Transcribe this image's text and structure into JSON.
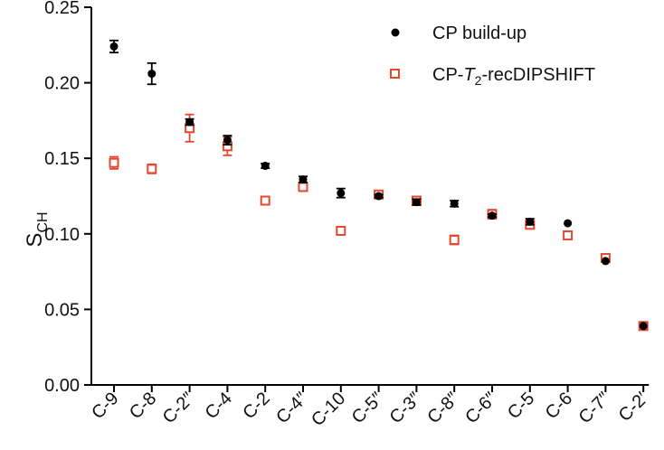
{
  "chart_data": {
    "type": "scatter",
    "categories": [
      "C-9",
      "C-8",
      "C-2″",
      "C-4",
      "C-2",
      "C-4″",
      "C-10",
      "C-5″",
      "C-3″",
      "C-8″",
      "C-6″",
      "C-5",
      "C-6",
      "C-7″",
      "C-2′"
    ],
    "ylabel_main": "S",
    "ylabel_sub": "CH",
    "ylim": [
      0,
      0.25
    ],
    "yticks": [
      0,
      0.05,
      0.1,
      0.15,
      0.2,
      0.25
    ],
    "ytick_labels": [
      "0.00",
      "0.05",
      "0.10",
      "0.15",
      "0.20",
      "0.25"
    ],
    "grid": false,
    "legend_position": "top-right",
    "series": [
      {
        "name": "CP build-up",
        "marker": "filled-circle",
        "color": "#000000",
        "values": [
          0.224,
          0.206,
          0.174,
          0.162,
          0.145,
          0.136,
          0.127,
          0.125,
          0.121,
          0.12,
          0.112,
          0.108,
          0.107,
          0.082,
          0.039
        ],
        "errors": [
          0.004,
          0.007,
          0.002,
          0.003,
          0.0015,
          0.002,
          0.003,
          0.001,
          0.002,
          0.002,
          0.001,
          0.002,
          0.0,
          0.0,
          0.0
        ]
      },
      {
        "name_prefix": "CP-",
        "name_italic": "T",
        "name_sub": "2",
        "name_suffix": "-recDIPSHIFT",
        "marker": "open-square",
        "color": "#e8472f",
        "values": [
          0.147,
          0.143,
          0.17,
          0.158,
          0.122,
          0.131,
          0.102,
          0.126,
          0.122,
          0.096,
          0.113,
          0.106,
          0.099,
          0.084,
          0.039
        ],
        "errors": [
          0.004,
          0.003,
          0.009,
          0.006,
          0.0,
          0.002,
          0.0,
          0.0,
          0.0,
          0.003,
          0.003,
          0.002,
          0.0,
          0.0,
          0.0
        ]
      }
    ]
  }
}
